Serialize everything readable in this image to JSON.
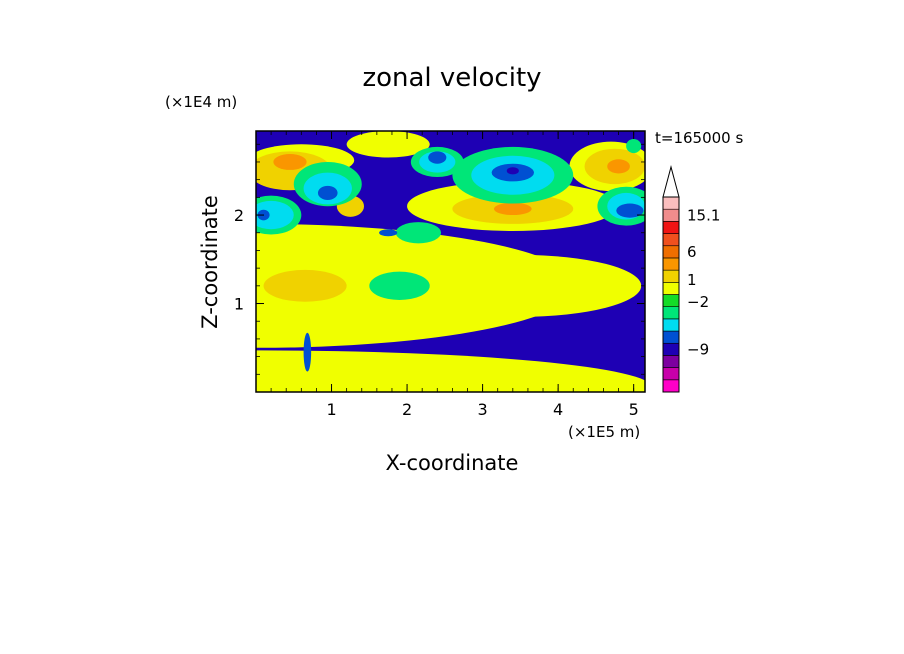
{
  "chart_data": {
    "type": "heatmap",
    "title": "zonal velocity",
    "xlabel": "X-coordinate",
    "ylabel": "Z-coordinate",
    "x_scale_label": "(×1E5 m)",
    "y_scale_label": "(×1E4 m)",
    "time_label": "t=165000 s",
    "xlim": [
      0,
      5.15
    ],
    "ylim": [
      0,
      2.95
    ],
    "x_ticks": [
      {
        "value": 1,
        "label": "1"
      },
      {
        "value": 2,
        "label": "2"
      },
      {
        "value": 3,
        "label": "3"
      },
      {
        "value": 4,
        "label": "4"
      },
      {
        "value": 5,
        "label": "5"
      }
    ],
    "y_ticks": [
      {
        "value": 1,
        "label": "1"
      },
      {
        "value": 2,
        "label": "2"
      }
    ],
    "background_level": 3,
    "levels": [
      {
        "color": "#ff00c8"
      },
      {
        "color": "#c800aa"
      },
      {
        "color": "#7d00a0"
      },
      {
        "color": "#1e00b4"
      },
      {
        "color": "#0050d2"
      },
      {
        "color": "#00dcf0"
      },
      {
        "color": "#00e678"
      },
      {
        "color": "#14dc28"
      },
      {
        "color": "#f0ff00"
      },
      {
        "color": "#f0d200"
      },
      {
        "color": "#fa9600"
      },
      {
        "color": "#f06e00"
      },
      {
        "color": "#f0501e"
      },
      {
        "color": "#f01414"
      },
      {
        "color": "#f08c8c"
      },
      {
        "color": "#fabebe"
      }
    ],
    "colorbar_labels": [
      {
        "label": "15.1",
        "level": 14.5
      },
      {
        "label": "6",
        "level": 11.5
      },
      {
        "label": "1",
        "level": 9.2
      },
      {
        "label": "−2",
        "level": 7.4
      },
      {
        "label": "−9",
        "level": 3.5
      }
    ],
    "regions": [
      {
        "level": 8,
        "x": 0.05,
        "z": 1.2,
        "rx": 4.2,
        "rz": 0.7
      },
      {
        "level": 8,
        "x": 0.05,
        "z": 0.05,
        "rx": 5.2,
        "rz": 0.42
      },
      {
        "level": 8,
        "x": 3.5,
        "z": 1.2,
        "rx": 1.6,
        "rz": 0.35
      },
      {
        "level": 8,
        "x": 0.6,
        "z": 2.62,
        "rx": 0.7,
        "rz": 0.18
      },
      {
        "level": 8,
        "x": 1.75,
        "z": 2.8,
        "rx": 0.55,
        "rz": 0.15
      },
      {
        "level": 8,
        "x": 3.4,
        "z": 2.1,
        "rx": 1.4,
        "rz": 0.28
      },
      {
        "level": 8,
        "x": 4.7,
        "z": 2.55,
        "rx": 0.55,
        "rz": 0.28
      },
      {
        "level": 8,
        "x": 1.05,
        "z": 1.65,
        "rx": 0.55,
        "rz": 0.18
      },
      {
        "level": 9,
        "x": 0.45,
        "z": 2.5,
        "rx": 0.55,
        "rz": 0.22
      },
      {
        "level": 9,
        "x": 3.4,
        "z": 2.07,
        "rx": 0.8,
        "rz": 0.17
      },
      {
        "level": 9,
        "x": 4.75,
        "z": 2.55,
        "rx": 0.4,
        "rz": 0.2
      },
      {
        "level": 9,
        "x": 0.65,
        "z": 1.2,
        "rx": 0.55,
        "rz": 0.18
      },
      {
        "level": 9,
        "x": 1.25,
        "z": 2.1,
        "rx": 0.18,
        "rz": 0.12
      },
      {
        "level": 10,
        "x": 0.45,
        "z": 2.6,
        "rx": 0.22,
        "rz": 0.09
      },
      {
        "level": 10,
        "x": 3.4,
        "z": 2.07,
        "rx": 0.25,
        "rz": 0.07
      },
      {
        "level": 10,
        "x": 4.8,
        "z": 2.55,
        "rx": 0.15,
        "rz": 0.08
      },
      {
        "level": 6,
        "x": 0.2,
        "z": 2.0,
        "rx": 0.4,
        "rz": 0.22
      },
      {
        "level": 6,
        "x": 0.95,
        "z": 2.35,
        "rx": 0.45,
        "rz": 0.25
      },
      {
        "level": 6,
        "x": 2.4,
        "z": 2.6,
        "rx": 0.35,
        "rz": 0.17
      },
      {
        "level": 6,
        "x": 3.4,
        "z": 2.45,
        "rx": 0.8,
        "rz": 0.32
      },
      {
        "level": 6,
        "x": 4.9,
        "z": 2.1,
        "rx": 0.38,
        "rz": 0.22
      },
      {
        "level": 6,
        "x": 1.9,
        "z": 1.2,
        "rx": 0.4,
        "rz": 0.16
      },
      {
        "level": 6,
        "x": 2.15,
        "z": 1.8,
        "rx": 0.3,
        "rz": 0.12
      },
      {
        "level": 6,
        "x": 5.0,
        "z": 2.78,
        "rx": 0.1,
        "rz": 0.08
      },
      {
        "level": 5,
        "x": 0.2,
        "z": 2.0,
        "rx": 0.3,
        "rz": 0.16
      },
      {
        "level": 5,
        "x": 0.95,
        "z": 2.3,
        "rx": 0.32,
        "rz": 0.18
      },
      {
        "level": 5,
        "x": 2.4,
        "z": 2.6,
        "rx": 0.24,
        "rz": 0.12
      },
      {
        "level": 5,
        "x": 3.4,
        "z": 2.45,
        "rx": 0.55,
        "rz": 0.22
      },
      {
        "level": 5,
        "x": 4.9,
        "z": 2.1,
        "rx": 0.25,
        "rz": 0.15
      },
      {
        "level": 4,
        "x": 0.1,
        "z": 2.0,
        "rx": 0.08,
        "rz": 0.06
      },
      {
        "level": 4,
        "x": 0.95,
        "z": 2.25,
        "rx": 0.13,
        "rz": 0.08
      },
      {
        "level": 4,
        "x": 2.4,
        "z": 2.65,
        "rx": 0.12,
        "rz": 0.07
      },
      {
        "level": 4,
        "x": 3.4,
        "z": 2.48,
        "rx": 0.28,
        "rz": 0.1
      },
      {
        "level": 4,
        "x": 4.95,
        "z": 2.05,
        "rx": 0.18,
        "rz": 0.08
      },
      {
        "level": 4,
        "x": 1.75,
        "z": 1.8,
        "rx": 0.12,
        "rz": 0.04
      },
      {
        "level": 4,
        "x": 0.68,
        "z": 0.45,
        "rx": 0.05,
        "rz": 0.22
      },
      {
        "level": 3,
        "x": 3.4,
        "z": 2.5,
        "rx": 0.08,
        "rz": 0.04
      }
    ]
  }
}
